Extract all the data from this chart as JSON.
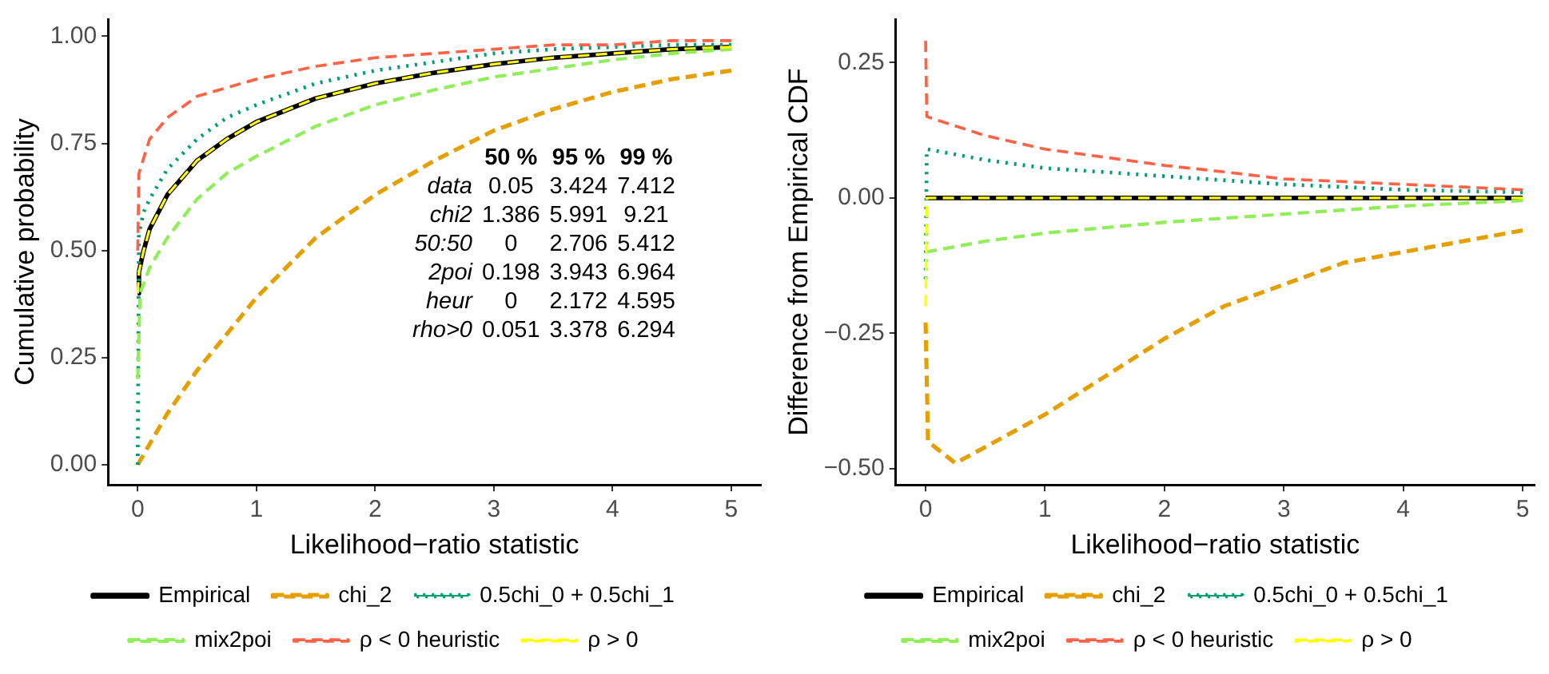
{
  "chart_data": [
    {
      "type": "line",
      "xlabel": "Likelihood−ratio statistic",
      "ylabel": "Cumulative probability",
      "xlim": [
        -0.25,
        5.25
      ],
      "xticks": [
        0,
        1,
        2,
        3,
        4,
        5
      ],
      "ylim": [
        -0.047,
        1.04
      ],
      "yticks": [
        {
          "value": 0,
          "label": "0.00"
        },
        {
          "value": 0.25,
          "label": "0.25"
        },
        {
          "value": 0.5,
          "label": "0.50"
        },
        {
          "value": 0.75,
          "label": "0.75"
        },
        {
          "value": 1,
          "label": "1.00"
        }
      ],
      "grid": false,
      "legend": "bottom",
      "marker": "none",
      "annotations": [
        "\t50 %\t95 %\t99 %",
        "data\t0.05\t3.424\t7.412",
        "chi2\t1.386\t5.991\t9.21",
        "50:50\t0\t2.706\t5.412",
        "2poi\t0.198\t3.943\t6.964",
        "heur\t0\t2.172\t4.595",
        "rho>0\t0.051\t3.378\t6.294"
      ],
      "series": [
        {
          "name": "Empirical",
          "color": "#000000",
          "line_style": "solid",
          "x": [
            0,
            0.01,
            0.05,
            0.1,
            0.25,
            0.5,
            0.75,
            1,
            1.5,
            2,
            2.5,
            3,
            3.5,
            4,
            4.5,
            5
          ],
          "values": [
            0.4,
            0.45,
            0.5,
            0.55,
            0.63,
            0.71,
            0.76,
            0.8,
            0.855,
            0.89,
            0.915,
            0.935,
            0.95,
            0.96,
            0.97,
            0.975
          ]
        },
        {
          "name": "chi_2",
          "color": "#e69f00",
          "line_style": "dashed",
          "x": [
            0,
            0.25,
            0.5,
            1,
            1.5,
            2,
            2.5,
            3,
            3.5,
            4,
            4.5,
            5
          ],
          "values": [
            0,
            0.12,
            0.22,
            0.39,
            0.53,
            0.63,
            0.71,
            0.78,
            0.83,
            0.87,
            0.9,
            0.92
          ]
        },
        {
          "name": "0.5chi_0 + 0.5chi_1",
          "color": "#009e73",
          "line_style": "dotted",
          "x": [
            0,
            0.01,
            0.05,
            0.1,
            0.25,
            0.5,
            0.75,
            1,
            1.5,
            2,
            2.5,
            3,
            3.5,
            4,
            4.5,
            5
          ],
          "values": [
            0,
            0.54,
            0.59,
            0.62,
            0.69,
            0.76,
            0.81,
            0.84,
            0.89,
            0.92,
            0.94,
            0.96,
            0.97,
            0.975,
            0.98,
            0.98
          ]
        },
        {
          "name": "mix2poi",
          "color": "#90ee5a",
          "line_style": "dashed",
          "x": [
            0,
            0.02,
            0.1,
            0.25,
            0.5,
            0.75,
            1,
            1.5,
            2,
            2.5,
            3,
            3.5,
            4,
            4.5,
            5
          ],
          "values": [
            0.2,
            0.4,
            0.46,
            0.53,
            0.62,
            0.68,
            0.72,
            0.79,
            0.84,
            0.875,
            0.905,
            0.925,
            0.945,
            0.96,
            0.97
          ]
        },
        {
          "name": "ρ < 0 heuristic",
          "color": "#ff6347",
          "line_style": "dashed",
          "x": [
            0,
            0.01,
            0.1,
            0.25,
            0.5,
            1,
            1.5,
            2,
            2.5,
            3,
            3.5,
            4,
            4.5,
            5
          ],
          "values": [
            0.5,
            0.68,
            0.76,
            0.81,
            0.86,
            0.9,
            0.93,
            0.95,
            0.96,
            0.97,
            0.98,
            0.98,
            0.99,
            0.99
          ]
        },
        {
          "name": "ρ > 0",
          "color": "#ffff00",
          "line_style": "dashed",
          "x": [
            0,
            0.01,
            0.05,
            0.1,
            0.25,
            0.5,
            0.75,
            1,
            1.5,
            2,
            2.5,
            3,
            3.5,
            4,
            4.5,
            5
          ],
          "values": [
            0.4,
            0.45,
            0.5,
            0.55,
            0.63,
            0.71,
            0.76,
            0.8,
            0.855,
            0.89,
            0.915,
            0.935,
            0.95,
            0.96,
            0.97,
            0.975
          ]
        }
      ]
    },
    {
      "type": "line",
      "xlabel": "Likelihood−ratio statistic",
      "ylabel": "Difference from Empirical CDF",
      "xlim": [
        -0.25,
        5.1
      ],
      "xticks": [
        0,
        1,
        2,
        3,
        4,
        5
      ],
      "ylim": [
        -0.53,
        0.33
      ],
      "yticks": [
        {
          "value": -0.5,
          "label": "−0.50"
        },
        {
          "value": -0.25,
          "label": "−0.25"
        },
        {
          "value": 0,
          "label": "0.00"
        },
        {
          "value": 0.25,
          "label": "0.25"
        }
      ],
      "grid": false,
      "legend": "bottom",
      "marker": "none",
      "series": [
        {
          "name": "Empirical",
          "color": "#000000",
          "line_style": "solid",
          "x": [
            0,
            5
          ],
          "values": [
            0,
            0
          ]
        },
        {
          "name": "chi_2",
          "color": "#e69f00",
          "line_style": "dashed",
          "x": [
            0,
            0.02,
            0.25,
            0.5,
            1,
            1.5,
            2,
            2.5,
            3,
            3.5,
            4,
            4.5,
            5
          ],
          "values": [
            -0.23,
            -0.45,
            -0.49,
            -0.46,
            -0.4,
            -0.33,
            -0.26,
            -0.2,
            -0.16,
            -0.12,
            -0.1,
            -0.08,
            -0.06
          ]
        },
        {
          "name": "0.5chi_0 + 0.5chi_1",
          "color": "#009e73",
          "line_style": "dotted",
          "x": [
            0,
            0.01,
            0.5,
            1,
            2,
            3,
            4,
            5
          ],
          "values": [
            -0.15,
            0.09,
            0.07,
            0.055,
            0.04,
            0.025,
            0.015,
            0.01
          ]
        },
        {
          "name": "mix2poi",
          "color": "#90ee5a",
          "line_style": "dashed",
          "x": [
            0,
            0.5,
            1,
            2,
            3,
            4,
            5
          ],
          "values": [
            -0.1,
            -0.08,
            -0.065,
            -0.045,
            -0.03,
            -0.015,
            -0.005
          ]
        },
        {
          "name": "ρ < 0 heuristic",
          "color": "#ff6347",
          "line_style": "dashed",
          "x": [
            0,
            0.01,
            0.5,
            1,
            1.5,
            2,
            2.5,
            3,
            3.5,
            4,
            4.5,
            5
          ],
          "values": [
            0.29,
            0.15,
            0.115,
            0.09,
            0.075,
            0.06,
            0.048,
            0.035,
            0.03,
            0.025,
            0.02,
            0.015
          ]
        },
        {
          "name": "ρ > 0",
          "color": "#ffff00",
          "line_style": "dashed",
          "x": [
            0,
            0.01,
            5
          ],
          "values": [
            -0.2,
            0,
            0
          ]
        }
      ]
    }
  ]
}
